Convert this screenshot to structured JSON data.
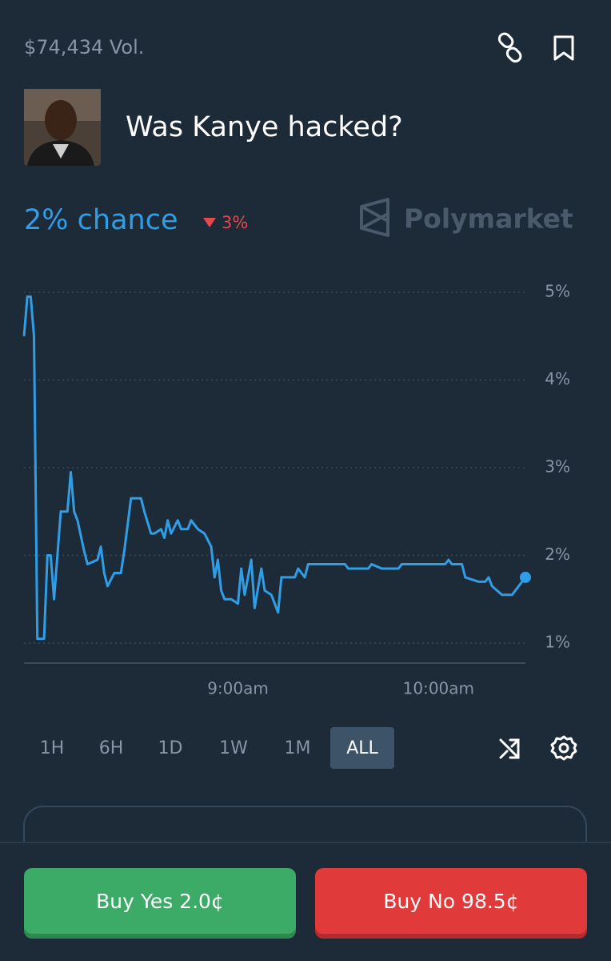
{
  "header": {
    "volume": "$74,434 Vol.",
    "title": "Was Kanye hacked?"
  },
  "summary": {
    "chance": "2% chance",
    "change": "3%",
    "brand": "Polymarket"
  },
  "chart_data": {
    "type": "line",
    "x": [
      "7:56",
      "7:57",
      "7:58",
      "7:59",
      "8:00",
      "8:02",
      "8:03",
      "8:04",
      "8:05",
      "8:07",
      "8:09",
      "8:10",
      "8:11",
      "8:12",
      "8:14",
      "8:15",
      "8:18",
      "8:19",
      "8:20",
      "8:21",
      "8:23",
      "8:25",
      "8:26",
      "8:27",
      "8:28",
      "8:31",
      "8:32",
      "8:34",
      "8:35",
      "8:37",
      "8:38",
      "8:39",
      "8:40",
      "8:42",
      "8:43",
      "8:45",
      "8:46",
      "8:48",
      "8:50",
      "8:52",
      "8:53",
      "8:54",
      "8:55",
      "8:56",
      "8:58",
      "9:00",
      "9:01",
      "9:02",
      "9:04",
      "9:05",
      "9:07",
      "9:08",
      "9:10",
      "9:12",
      "9:13",
      "9:17",
      "9:18",
      "9:20",
      "9:21",
      "9:32",
      "9:33",
      "9:39",
      "9:40",
      "9:43",
      "9:48",
      "9:49",
      "10:02",
      "10:03",
      "10:04",
      "10:07",
      "10:08",
      "10:12",
      "10:14",
      "10:15",
      "10:16",
      "10:19",
      "10:22",
      "10:24",
      "10:26"
    ],
    "series": [
      {
        "color": "#2f9ee6",
        "values": [
          4.5,
          4.95,
          4.95,
          4.5,
          1.05,
          1.05,
          2.0,
          2.0,
          1.5,
          2.5,
          2.5,
          2.95,
          2.5,
          2.4,
          2.05,
          1.9,
          1.95,
          2.1,
          1.8,
          1.65,
          1.8,
          1.8,
          2.05,
          2.35,
          2.65,
          2.65,
          2.5,
          2.25,
          2.25,
          2.3,
          2.2,
          2.4,
          2.25,
          2.4,
          2.3,
          2.3,
          2.4,
          2.3,
          2.25,
          2.1,
          1.75,
          1.95,
          1.6,
          1.5,
          1.5,
          1.45,
          1.85,
          1.55,
          1.95,
          1.4,
          1.85,
          1.6,
          1.55,
          1.35,
          1.75,
          1.75,
          1.85,
          1.75,
          1.9,
          1.9,
          1.85,
          1.85,
          1.9,
          1.85,
          1.85,
          1.9,
          1.9,
          1.95,
          1.9,
          1.9,
          1.75,
          1.7,
          1.7,
          1.75,
          1.65,
          1.55,
          1.55,
          1.65,
          1.75
        ]
      }
    ],
    "xlim": [
      "7:56",
      "10:26"
    ],
    "xticks": [
      {
        "value": "9:00",
        "label": "9:00am"
      },
      {
        "value": "10:00",
        "label": "10:00am"
      }
    ],
    "ylim": [
      0.8,
      5.2
    ],
    "yticks": [
      {
        "value": 1,
        "label": "1%"
      },
      {
        "value": 2,
        "label": "2%"
      },
      {
        "value": 3,
        "label": "3%"
      },
      {
        "value": 4,
        "label": "4%"
      },
      {
        "value": 5,
        "label": "5%"
      }
    ],
    "grid": true
  },
  "ranges": {
    "options": [
      "1H",
      "6H",
      "1D",
      "1W",
      "1M",
      "ALL"
    ],
    "selected": "ALL"
  },
  "actions": {
    "buy_yes": "Buy Yes 2.0¢",
    "buy_no": "Buy No 98.5¢"
  }
}
